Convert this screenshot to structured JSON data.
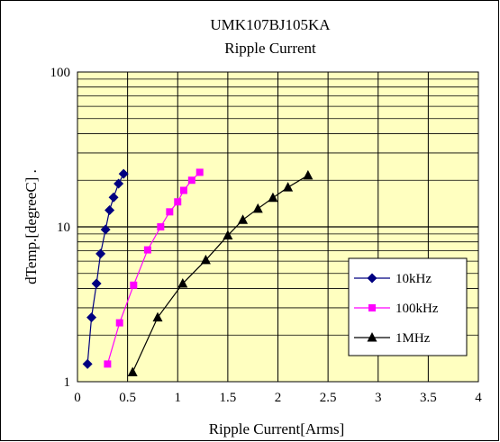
{
  "chart_data": {
    "type": "line",
    "title": "UMK107BJ105KA",
    "subtitle": "Ripple Current",
    "xlabel": "Ripple Current[Arms]",
    "ylabel": "dTemp.[degreeC] .",
    "xlim": [
      0,
      4
    ],
    "ylim": [
      1,
      100
    ],
    "y_scale": "log",
    "x_ticks": [
      "0",
      "0.5",
      "1",
      "1.5",
      "2",
      "2.5",
      "3",
      "3.5",
      "4"
    ],
    "y_ticks": [
      "1",
      "10",
      "100"
    ],
    "grid": true,
    "plot_background": "#ffffc0",
    "legend_position": "bottom-right",
    "series": [
      {
        "name": "10kHz",
        "color": "#000080",
        "marker": "diamond",
        "x": [
          0.1,
          0.14,
          0.19,
          0.23,
          0.28,
          0.32,
          0.36,
          0.41,
          0.46
        ],
        "y": [
          1.3,
          2.6,
          4.3,
          6.7,
          9.6,
          12.8,
          15.5,
          19,
          22
        ]
      },
      {
        "name": "100kHz",
        "color": "#ff00ff",
        "marker": "square",
        "x": [
          0.3,
          0.42,
          0.56,
          0.7,
          0.83,
          0.92,
          1.0,
          1.06,
          1.14,
          1.22
        ],
        "y": [
          1.3,
          2.4,
          4.2,
          7.1,
          10,
          12.5,
          14.5,
          17.2,
          20,
          22.5
        ]
      },
      {
        "name": "1MHz",
        "color": "#000000",
        "marker": "triangle",
        "x": [
          0.55,
          0.8,
          1.05,
          1.28,
          1.5,
          1.65,
          1.8,
          1.95,
          2.1,
          2.3
        ],
        "y": [
          1.15,
          2.6,
          4.3,
          6.1,
          8.8,
          11.1,
          13.1,
          15.4,
          18,
          21.5
        ]
      }
    ]
  }
}
